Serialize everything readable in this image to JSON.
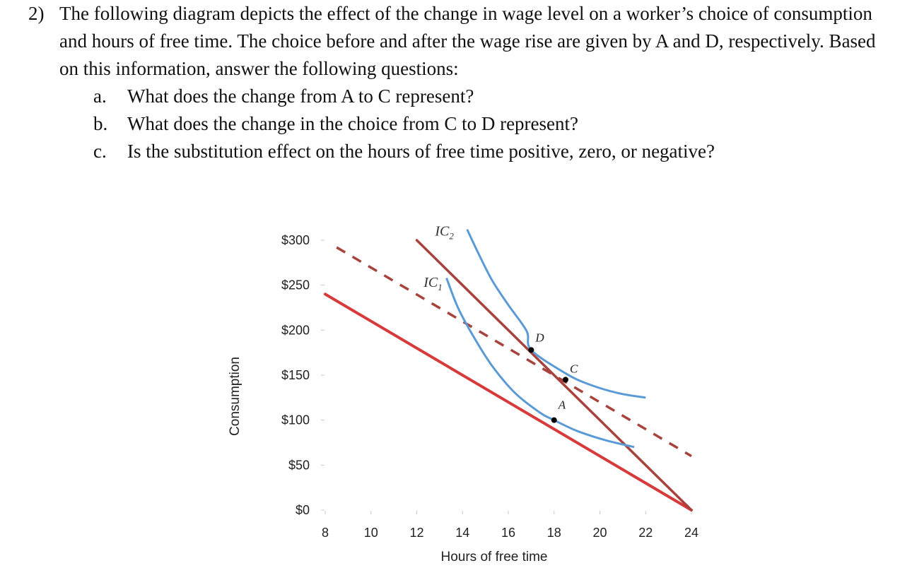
{
  "question": {
    "number": "2)",
    "intro": "The following diagram depicts the effect of the change in wage level on a worker’s choice of consumption and hours of free time. The choice before and after the wage rise are given by A and D, respectively. Based on this information, answer the following questions:",
    "parts": [
      {
        "letter": "a.",
        "text": "What does the change from A to C represent?"
      },
      {
        "letter": "b.",
        "text": "What does the change in the choice from C to D represent?"
      },
      {
        "letter": "c.",
        "text": "Is the substitution effect on the hours of free time positive, zero, or negative?"
      }
    ]
  },
  "chart_data": {
    "type": "line",
    "xlabel": "Hours of free time",
    "ylabel": "Consumption",
    "xlim": [
      8,
      24
    ],
    "ylim": [
      0,
      300
    ],
    "x_ticks": [
      8,
      10,
      12,
      14,
      16,
      18,
      20,
      22,
      24
    ],
    "y_ticks": [
      {
        "value": 0,
        "label": "$0"
      },
      {
        "value": 50,
        "label": "$50"
      },
      {
        "value": 100,
        "label": "$100"
      },
      {
        "value": 150,
        "label": "$150"
      },
      {
        "value": 200,
        "label": "$200"
      },
      {
        "value": 250,
        "label": "$250"
      },
      {
        "value": 300,
        "label": "$300"
      }
    ],
    "grid": false,
    "colors": {
      "budget_original": "#d63a3a",
      "budget_new": "#a8423c",
      "budget_compensated": "#a8423c",
      "indifference": "#5b9bd5",
      "points": "#000000"
    },
    "lines": [
      {
        "id": "budget-original",
        "style": "solid",
        "points": [
          [
            8,
            240
          ],
          [
            24,
            0
          ]
        ]
      },
      {
        "id": "budget-new",
        "style": "solid",
        "points": [
          [
            12,
            300
          ],
          [
            24,
            0
          ]
        ]
      },
      {
        "id": "budget-compensated",
        "style": "dashed",
        "points": [
          [
            8.5,
            292
          ],
          [
            24,
            60
          ]
        ]
      }
    ],
    "curves": [
      {
        "id": "ic1",
        "label": "IC",
        "subscript": "1",
        "label_at": [
          12.3,
          248
        ],
        "points": [
          [
            13.3,
            258
          ],
          [
            13.8,
            225
          ],
          [
            14.5,
            192
          ],
          [
            15.3,
            160
          ],
          [
            16.3,
            130
          ],
          [
            17.4,
            108
          ],
          [
            18,
            100
          ],
          [
            19,
            88
          ],
          [
            20.2,
            78
          ],
          [
            21.5,
            70
          ]
        ]
      },
      {
        "id": "ic2",
        "label": "IC",
        "subscript": "2",
        "label_at": [
          12.8,
          305
        ],
        "points": [
          [
            14.2,
            312
          ],
          [
            14.7,
            285
          ],
          [
            15.3,
            255
          ],
          [
            16,
            228
          ],
          [
            16.8,
            199
          ],
          [
            17,
            178
          ],
          [
            18.5,
            152
          ],
          [
            19.5,
            140
          ],
          [
            20.8,
            130
          ],
          [
            22,
            125
          ]
        ]
      }
    ],
    "points": [
      {
        "label": "A",
        "x": 18,
        "y": 100
      },
      {
        "label": "C",
        "x": 18.5,
        "y": 145
      },
      {
        "label": "D",
        "x": 17,
        "y": 178
      }
    ]
  }
}
